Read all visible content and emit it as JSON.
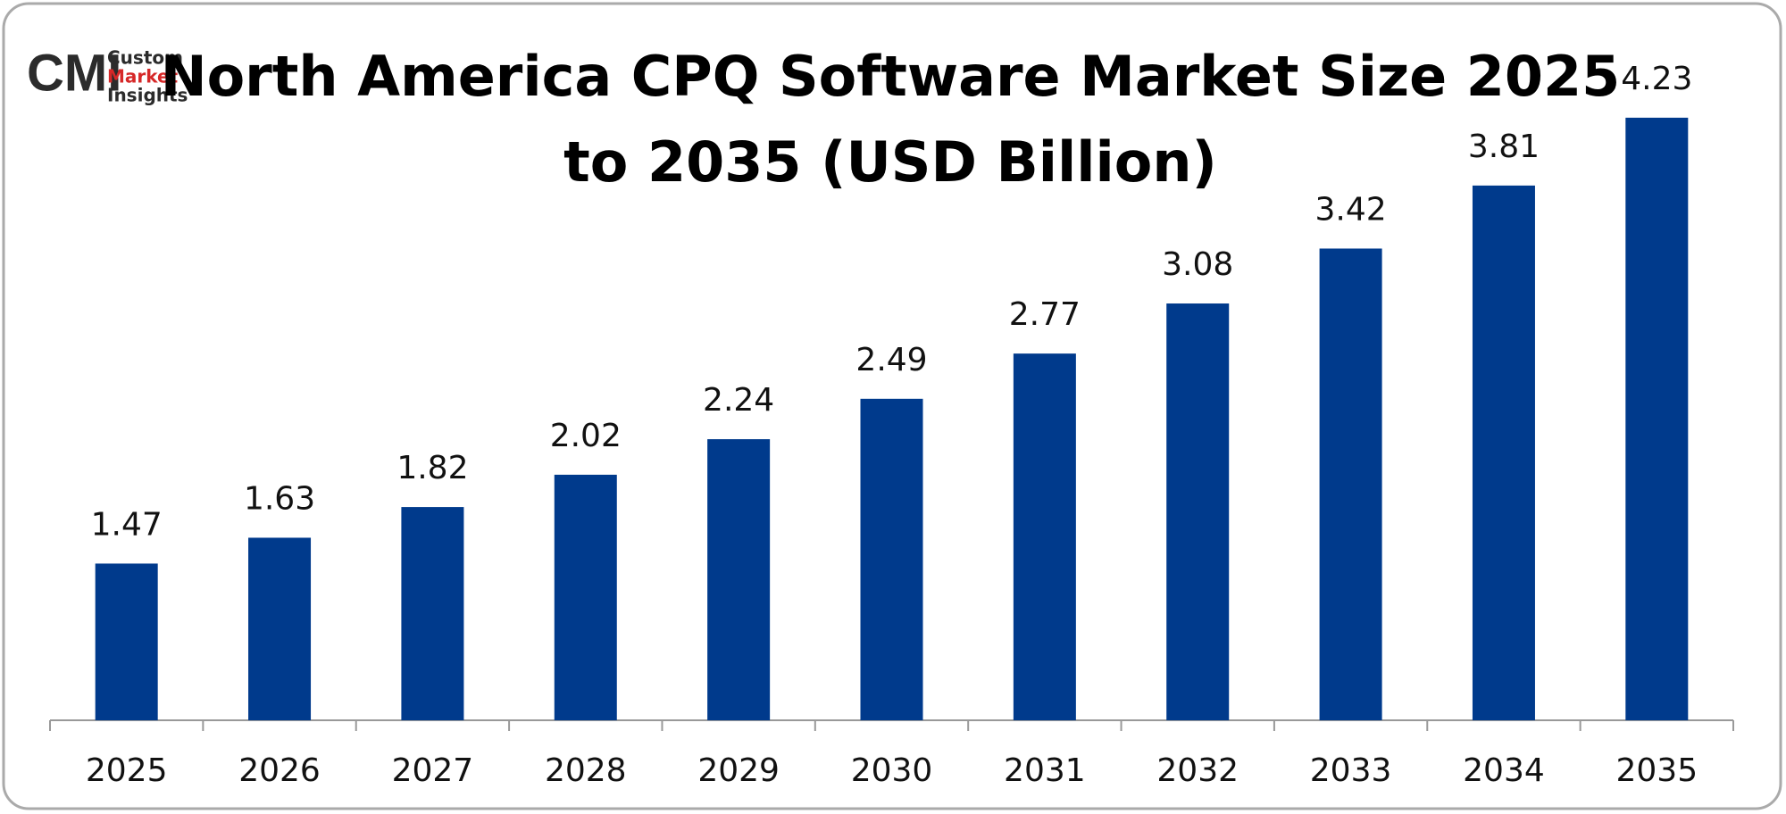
{
  "logo": {
    "mark": "CMI",
    "lines": [
      "Custom",
      "Market",
      "Insights"
    ]
  },
  "chart_data": {
    "type": "bar",
    "title": [
      "North America CPQ Software Market Size 2025",
      "to 2035 (USD Billion)"
    ],
    "categories": [
      "2025",
      "2026",
      "2027",
      "2028",
      "2029",
      "2030",
      "2031",
      "2032",
      "2033",
      "2034",
      "2035"
    ],
    "values": [
      1.47,
      1.63,
      1.82,
      2.02,
      2.24,
      2.49,
      2.77,
      3.08,
      3.42,
      3.81,
      4.23
    ],
    "color": "#003a8c",
    "ylim": [
      0.5,
      4.5
    ]
  }
}
